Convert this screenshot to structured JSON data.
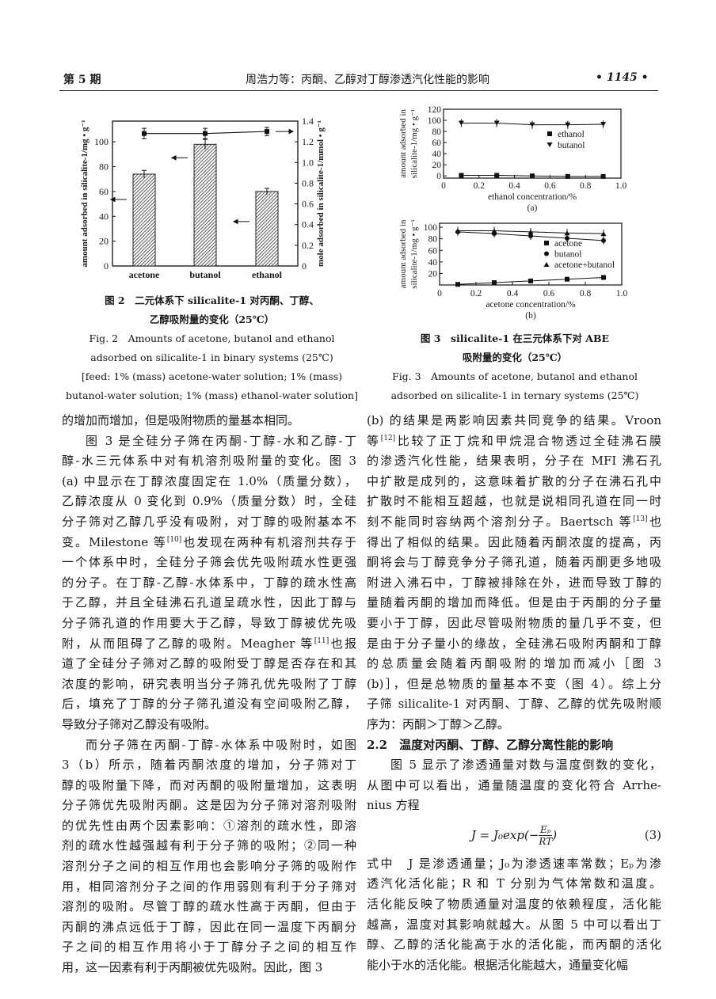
{
  "header": {
    "issue": "第 5 期",
    "title": "周浩力等：丙酮、乙醇对丁醇渗透汽化性能的影响",
    "page": "• 1145 •"
  },
  "fig2": {
    "caption_zh": [
      "图 2　二元体系下 silicalite-1 对丙酮、丁醇、",
      "乙醇吸附量的变化（25℃）"
    ],
    "caption_en": [
      "Fig. 2　Amounts of acetone, butanol and ethanol",
      "adsorbed on silicalite-1 in binary systems (25℃)",
      "[feed: 1% (mass) acetone-water solution; 1% (mass)",
      "butanol-water solution; 1% (mass) ethanol-water solution]"
    ]
  },
  "fig3": {
    "caption_zh": [
      "图 3　silicalite-1 在三元体系下对 ABE",
      "吸附量的变化（25℃）"
    ],
    "caption_en": [
      "Fig. 3　Amounts of acetone, butanol and ethanol",
      "adsorbed on silicalite-1 in ternary systems (25℃)"
    ]
  },
  "chart_data": [
    {
      "type": "bar",
      "categories": [
        "acetone",
        "butanol",
        "ethanol"
      ],
      "values": [
        74,
        98,
        60
      ],
      "errors": [
        3,
        4,
        2.5
      ],
      "ylabel": "amount adsorbed in silicalite-1/mg • g⁻¹",
      "ylim": [
        0,
        116.7
      ],
      "yticks": [
        0,
        20,
        40,
        60,
        80,
        100
      ],
      "bar_color": "#555555",
      "secondary_series": {
        "type": "line",
        "values": [
          1.28,
          1.28,
          1.3
        ],
        "errors": [
          0.05,
          0.05,
          0.04
        ]
      },
      "y2label": "mole adsorbed in silicalite-1/mmol • g⁻¹",
      "y2lim": [
        0,
        1.4
      ],
      "y2ticks": [
        "0",
        "0.2",
        "0.4",
        "0.6",
        "0.8",
        "1.0",
        "1.2",
        "1.4"
      ],
      "grid": false
    },
    {
      "type": "line",
      "panel": "(a)",
      "xlabel": "ethanol concentration/%",
      "ylabel": [
        "amount adsorbed in",
        "silicalite-1/mg • g⁻¹"
      ],
      "xlim": [
        0,
        1.0
      ],
      "ylim": [
        -4,
        120
      ],
      "xticks": [
        "0",
        "0.2",
        "0.4",
        "0.6",
        "0.8",
        "1.0"
      ],
      "yticks": [
        0,
        20,
        40,
        60,
        80,
        100,
        120
      ],
      "x": [
        0.1,
        0.3,
        0.5,
        0.7,
        0.9
      ],
      "series": [
        {
          "name": "ethanol",
          "marker": "square",
          "values": [
            1,
            1,
            0,
            -1,
            -1
          ]
        },
        {
          "name": "butanol",
          "marker": "triangle-down",
          "values": [
            95,
            95,
            92,
            92,
            93
          ]
        }
      ],
      "legend": "center-right",
      "grid": false
    },
    {
      "type": "line",
      "panel": "(b)",
      "xlabel": "acetone concentration/%",
      "ylabel": [
        "amount adsorbed in",
        "silicalite-1/mg • g⁻¹"
      ],
      "xlim": [
        0,
        1.0
      ],
      "ylim": [
        0,
        107
      ],
      "xticks": [
        "0",
        "0.2",
        "0.4",
        "0.6",
        "0.8",
        "1.0"
      ],
      "yticks": [
        20,
        40,
        60,
        80,
        100
      ],
      "x": [
        0.1,
        0.3,
        0.5,
        0.7,
        0.9
      ],
      "series": [
        {
          "name": "acetone",
          "marker": "square",
          "values": [
            1,
            4,
            7,
            10,
            13
          ]
        },
        {
          "name": "butanol",
          "marker": "circle",
          "values": [
            92,
            89,
            85,
            81,
            77
          ]
        },
        {
          "name": "acetone+butanol",
          "marker": "triangle-up",
          "values": [
            94,
            94,
            92,
            90,
            89
          ]
        }
      ],
      "legend": "center-right",
      "grid": false
    }
  ],
  "left_column": [
    [
      "的增加而增加，但是吸附物质的量基本相同。"
    ],
    [
      "图 3 是全硅分子筛在丙酮-丁醇-水和乙醇-丁",
      "醇-水三元体系中对有机溶剂吸附量的变化。图 3",
      "(a) 中显示在丁醇浓度固定在 1.0%（质量分数），",
      "乙醇浓度从 0 变化到 0.9%（质量分数）时，全硅",
      "分子筛对乙醇几乎没有吸附，对丁醇的吸附基本不",
      "变。Milestone 等[10]也发现在两种有机溶剂共存于",
      "一个体系中时，全硅分子筛会优先吸附疏水性更强",
      "的分子。在丁醇-乙醇-水体系中，丁醇的疏水性高",
      "于乙醇，并且全硅沸石孔道呈疏水性，因此丁醇与",
      "分子筛孔道的作用要大于乙醇，导致丁醇被优先吸",
      "附，从而阻碍了乙醇的吸附。Meagher 等[11]也报",
      "道了全硅分子筛对乙醇的吸附受丁醇是否存在和其",
      "浓度的影响，研究表明当分子筛孔优先吸附了丁醇",
      "后，填充了丁醇的分子筛孔道没有空间吸附乙醇，",
      "导致分子筛对乙醇没有吸附。"
    ],
    [
      "而分子筛在丙酮-丁醇-水体系中吸附时，如图",
      "3（b）所示，随着丙酮浓度的增加，分子筛对丁",
      "醇的吸附量下降，而对丙酮的吸附量增加，这表明",
      "分子筛优先吸附丙酮。这是因为分子筛对溶剂吸附",
      "的优先性由两个因素影响：①溶剂的疏水性，即溶",
      "剂的疏水性越强越有利于分子筛的吸附；②同一种",
      "溶剂分子之间的相互作用也会影响分子筛的吸附作",
      "用，相同溶剂分子之间的作用弱则有利于分子筛对",
      "溶剂的吸附。尽管丁醇的疏水性高于丙酮，但由于",
      "丙酮的沸点远低于丁醇，因此在同一温度下丙酮分",
      "子之间的相互作用将小于丁醇分子之间的相互作",
      "用，这一因素有利于丙酮被优先吸附。因此，图 3"
    ]
  ],
  "right_column": {
    "p1": [
      "(b) 的结果是两影响因素共同竞争的结果。Vroon",
      "等[12]比较了正丁烷和甲烷混合物透过全硅沸石膜",
      "的渗透汽化性能，结果表明，分子在 MFI 沸石孔",
      "中扩散是成列的，这意味着扩散的分子在沸石孔中",
      "扩散时不能相互超越，也就是说相同孔道在同一时",
      "刻不能同时容纳两个溶剂分子。Baertsch 等[13]也",
      "得出了相似的结果。因此随着丙酮浓度的提高，丙",
      "酮将会与丁醇竞争分子筛孔道，随着丙酮更多地吸",
      "附进入沸石中，丁醇被排除在外，进而导致丁醇的",
      "量随着丙酮的增加而降低。但是由于丙酮的分子量",
      "要小于丁醇，因此尽管吸附物质的量几乎不变，但",
      "是由于分子量小的缘故，全硅沸石吸附丙酮和丁醇",
      "的总质量会随着丙酮吸附的增加而减小［图 3",
      "(b)］，但是总物质的量基本不变（图 4）。综上分",
      "子筛 silicalite-1 对丙酮、丁醇、乙醇的优先吸附顺",
      "序为：丙酮＞丁醇＞乙醇。"
    ],
    "heading": "2.2　温度对丙酮、丁醇、乙醇分离性能的影响",
    "p2": [
      "图 5 显示了渗透通量对数与温度倒数的变化，",
      "从图中可以看出，通量随温度的变化符合 Arrhe-",
      "nius 方程"
    ],
    "equation": {
      "lhs": "J = J₀exp",
      "numerator": "Eₚ",
      "denominator": "RT",
      "number": "(3)"
    },
    "p3": [
      "式中　J 是渗透通量；J₀为渗透速率常数；Eₚ为渗",
      "透汽化活化能；R 和 T 分别为气体常数和温度。",
      "活化能反映了物质通量对温度的依赖程度，活化能",
      "越高，温度对其影响就越大。从图 5 中可以看出丁",
      "醇、乙醇的活化能高于水的活化能，而丙酮的活化",
      "能小于水的活化能。根据活化能越大，通量变化幅"
    ]
  }
}
